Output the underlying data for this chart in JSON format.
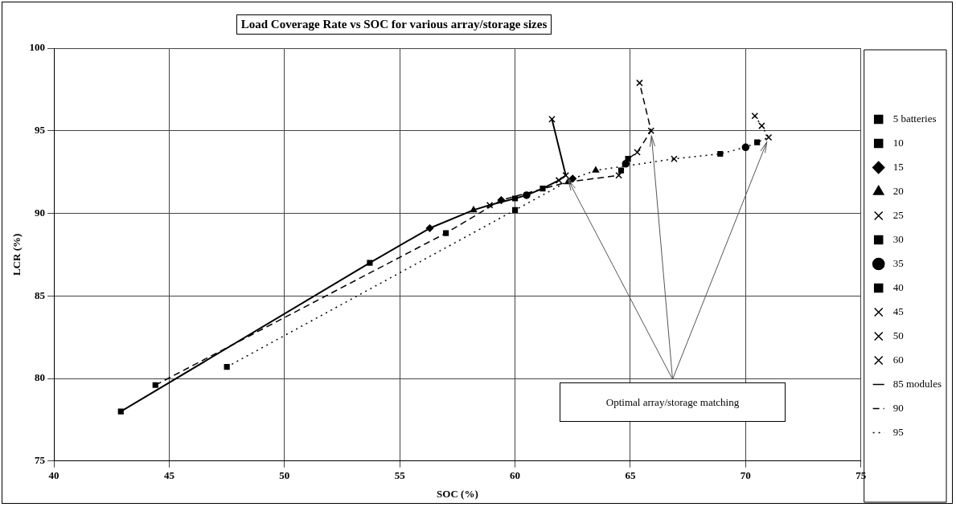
{
  "chart_data": {
    "type": "scatter",
    "title": "Load Coverage Rate vs SOC for various array/storage sizes",
    "xlabel": "SOC (%)",
    "ylabel": "LCR (%)",
    "xlim": [
      40,
      75
    ],
    "xticks": [
      40,
      45,
      50,
      55,
      60,
      65,
      70,
      75
    ],
    "ylim": [
      75,
      100
    ],
    "yticks": [
      75,
      80,
      85,
      90,
      95,
      100
    ],
    "grid": true,
    "legend": "right",
    "annotations": [
      "Optimal array/storage matching"
    ],
    "series": [
      {
        "name": "5 batteries",
        "color": "#000000",
        "marker": "square",
        "x": [
          42.9,
          44.4,
          47.5
        ],
        "values": [
          78.0,
          79.6,
          80.7
        ]
      },
      {
        "name": "10",
        "color": "#000000",
        "marker": "square",
        "x": [
          53.7,
          57.0,
          60.0
        ],
        "values": [
          87.0,
          88.8,
          90.2
        ]
      },
      {
        "name": "15",
        "color": "#000000",
        "marker": "diamond",
        "x": [
          56.3,
          59.4,
          62.5
        ],
        "values": [
          89.1,
          90.8,
          92.1
        ]
      },
      {
        "name": "20",
        "color": "#000000",
        "marker": "triangle",
        "x": [
          58.2,
          62.3,
          63.5
        ],
        "values": [
          90.2,
          91.9,
          92.6
        ]
      },
      {
        "name": "25",
        "color": "#000000",
        "marker": "cross",
        "x": [
          58.9,
          64.5,
          66.9
        ],
        "values": [
          90.5,
          92.3,
          93.3
        ]
      },
      {
        "name": "30",
        "color": "#000000",
        "marker": "square",
        "x": [
          60.0,
          64.6,
          68.9
        ],
        "values": [
          90.9,
          92.6,
          93.6
        ]
      },
      {
        "name": "35",
        "color": "#000000",
        "marker": "circle",
        "x": [
          60.5,
          64.8,
          70.0
        ],
        "values": [
          91.1,
          93.0,
          94.0
        ]
      },
      {
        "name": "40",
        "color": "#000000",
        "marker": "square",
        "x": [
          61.2,
          64.9,
          70.5
        ],
        "values": [
          91.5,
          93.3,
          94.3
        ]
      },
      {
        "name": "45",
        "color": "#000000",
        "marker": "cross",
        "x": [
          61.9,
          65.3,
          71.0
        ],
        "values": [
          92.0,
          93.7,
          94.6
        ]
      },
      {
        "name": "50",
        "color": "#000000",
        "marker": "cross",
        "x": [
          62.2,
          65.9,
          70.7
        ],
        "values": [
          92.3,
          95.0,
          95.3
        ]
      },
      {
        "name": "60",
        "color": "#000000",
        "marker": "cross",
        "x": [
          61.6,
          65.4,
          70.4
        ],
        "values": [
          95.7,
          97.9,
          95.9
        ]
      },
      {
        "name": "85 modules",
        "type": "line",
        "color": "#000000",
        "line_style": "solid",
        "marker": "none",
        "x": [
          42.9,
          53.7,
          56.3,
          58.2,
          58.9,
          60.0,
          60.5,
          61.2,
          61.9,
          62.2,
          61.6
        ],
        "values": [
          78.0,
          87.0,
          89.1,
          90.2,
          90.5,
          90.9,
          91.1,
          91.5,
          92.0,
          92.3,
          95.7
        ]
      },
      {
        "name": "90",
        "type": "line",
        "color": "#000000",
        "line_style": "dashed",
        "marker": "none",
        "x": [
          44.4,
          57.0,
          59.4,
          62.3,
          64.5,
          64.6,
          64.8,
          64.9,
          65.3,
          65.9,
          65.4
        ],
        "values": [
          79.6,
          88.8,
          90.8,
          91.9,
          92.3,
          92.6,
          93.0,
          93.3,
          93.7,
          95.0,
          97.9
        ]
      },
      {
        "name": "95",
        "type": "line",
        "color": "#000000",
        "line_style": "dotted",
        "marker": "none",
        "x": [
          47.5,
          60.0,
          62.5,
          63.5,
          66.9,
          68.9,
          70.0,
          70.5,
          71.0,
          70.7,
          70.4
        ],
        "values": [
          80.7,
          90.2,
          92.1,
          92.6,
          93.3,
          93.6,
          94.0,
          94.3,
          94.6,
          95.3,
          95.9
        ]
      }
    ]
  }
}
